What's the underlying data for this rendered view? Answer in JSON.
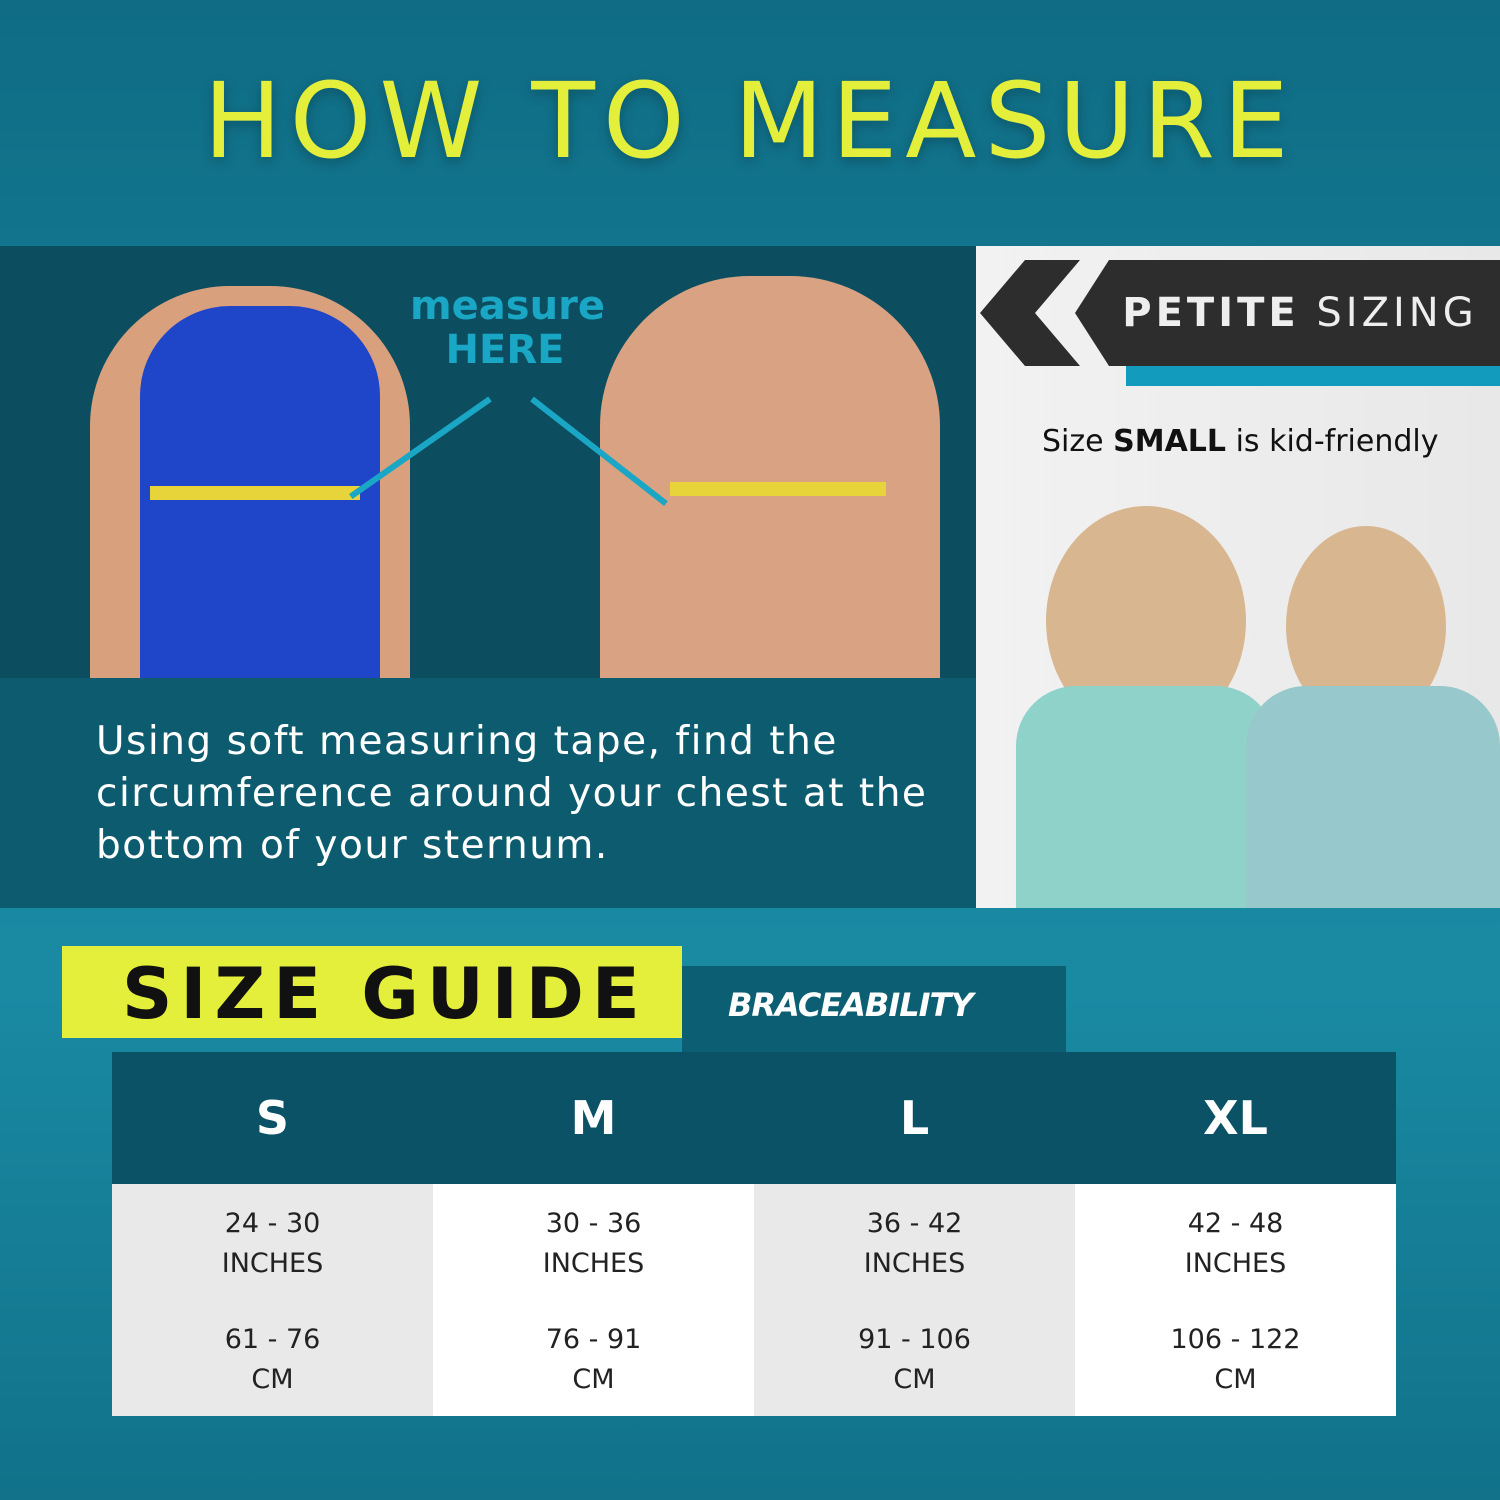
{
  "title": "HOW TO MEASURE",
  "photo_callout": {
    "line1": "measure",
    "line2": "HERE"
  },
  "instructions": "Using soft measuring tape, find the circumference around your chest at the bottom of your sternum.",
  "petite": {
    "banner_bold": "PETITE",
    "banner_light": "SIZING",
    "note_prefix": "Size ",
    "note_bold": "SMALL",
    "note_suffix": " is kid-friendly"
  },
  "size_guide": {
    "heading": "SIZE GUIDE",
    "brand": "BRACEABILITY",
    "sizes": [
      {
        "label": "S",
        "inches": "24 - 30",
        "inch_unit": "INCHES",
        "cm": "61 - 76",
        "cm_unit": "CM"
      },
      {
        "label": "M",
        "inches": "30 - 36",
        "inch_unit": "INCHES",
        "cm": "76 - 91",
        "cm_unit": "CM"
      },
      {
        "label": "L",
        "inches": "36 - 42",
        "inch_unit": "INCHES",
        "cm": "91 - 106",
        "cm_unit": "CM"
      },
      {
        "label": "XL",
        "inches": "42 - 48",
        "inch_unit": "INCHES",
        "cm": "106 - 122",
        "cm_unit": "CM"
      }
    ]
  },
  "colors": {
    "accent_yellow": "#e4ef3b",
    "teal_dark": "#0b5266",
    "arrow_blue": "#1aa6c5"
  }
}
